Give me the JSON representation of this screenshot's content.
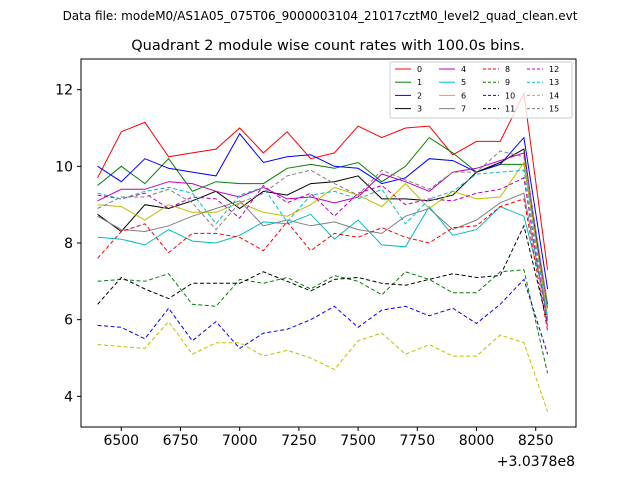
{
  "figure": {
    "suptitle": "Data file: modeM0/AS1A05_075T06_9000003104_21017cztM0_level2_quad_clean.evt"
  },
  "chart_data": {
    "type": "line",
    "title": "Quadrant 2 module wise count rates with 100.0s bins.",
    "xlabel": "",
    "ylabel": "",
    "x_offset_label": "+3.0378e8",
    "xlim": [
      6330,
      8420
    ],
    "ylim": [
      3.2,
      12.8
    ],
    "xticks": [
      6500,
      6750,
      7000,
      7250,
      7500,
      7750,
      8000,
      8250
    ],
    "yticks": [
      4,
      6,
      8,
      10,
      12
    ],
    "grid": false,
    "legend_position": "top-right",
    "x": [
      6400,
      6500,
      6600,
      6700,
      6800,
      6900,
      7000,
      7100,
      7200,
      7300,
      7400,
      7500,
      7600,
      7700,
      7800,
      7900,
      8000,
      8100,
      8200,
      8300
    ],
    "series": [
      {
        "name": "0",
        "color": "#ff0000",
        "dash": "solid",
        "values": [
          9.7,
          10.9,
          11.15,
          10.25,
          10.35,
          10.45,
          11.0,
          10.35,
          10.9,
          10.2,
          10.35,
          11.05,
          10.75,
          11.0,
          11.05,
          10.3,
          10.65,
          10.65,
          11.9,
          7.3
        ]
      },
      {
        "name": "1",
        "color": "#008000",
        "dash": "solid",
        "values": [
          9.5,
          10.0,
          9.55,
          10.2,
          9.35,
          9.6,
          9.55,
          9.55,
          9.95,
          10.05,
          9.95,
          10.1,
          9.6,
          10.0,
          10.75,
          10.35,
          9.85,
          10.05,
          10.05,
          6.4
        ]
      },
      {
        "name": "2",
        "color": "#0000ff",
        "dash": "solid",
        "values": [
          10.0,
          9.6,
          10.2,
          9.95,
          9.85,
          9.75,
          10.85,
          10.1,
          10.25,
          10.3,
          10.0,
          9.95,
          9.55,
          9.7,
          10.2,
          10.15,
          9.85,
          10.05,
          10.75,
          6.8
        ]
      },
      {
        "name": "3",
        "color": "#000000",
        "dash": "solid",
        "values": [
          8.75,
          8.3,
          9.0,
          8.9,
          9.1,
          9.35,
          8.9,
          9.35,
          9.25,
          9.55,
          9.6,
          9.75,
          9.15,
          9.15,
          9.1,
          9.25,
          9.85,
          10.1,
          10.45,
          6.0
        ]
      },
      {
        "name": "4",
        "color": "#bf00bf",
        "dash": "solid",
        "values": [
          9.1,
          9.4,
          9.4,
          9.6,
          9.55,
          9.35,
          9.2,
          9.45,
          9.15,
          9.2,
          9.05,
          9.2,
          9.8,
          9.6,
          9.35,
          9.85,
          9.95,
          10.15,
          10.35,
          6.3
        ]
      },
      {
        "name": "5",
        "color": "#00bfbf",
        "dash": "solid",
        "values": [
          8.15,
          8.1,
          7.95,
          8.35,
          8.05,
          8.0,
          8.2,
          8.55,
          8.5,
          8.75,
          8.1,
          8.6,
          7.95,
          7.9,
          8.95,
          8.2,
          8.35,
          8.95,
          8.7,
          6.3
        ]
      },
      {
        "name": "6",
        "color": "#bfbf00",
        "dash": "solid",
        "values": [
          9.0,
          8.95,
          8.6,
          9.0,
          8.8,
          8.8,
          9.05,
          8.8,
          8.7,
          9.0,
          9.45,
          9.25,
          8.95,
          9.55,
          8.9,
          9.35,
          9.15,
          9.2,
          10.1,
          6.1
        ]
      },
      {
        "name": "7",
        "color": "#808080",
        "dash": "solid",
        "values": [
          8.7,
          8.35,
          8.3,
          8.45,
          8.7,
          8.9,
          9.1,
          8.45,
          8.6,
          8.45,
          8.55,
          8.35,
          8.25,
          8.7,
          8.9,
          8.35,
          8.6,
          9.05,
          9.3,
          6.0
        ]
      },
      {
        "name": "8",
        "color": "#ff0000",
        "dash": "dashed",
        "values": [
          7.6,
          8.3,
          8.5,
          7.75,
          8.25,
          8.25,
          8.15,
          7.8,
          8.55,
          7.8,
          8.25,
          8.15,
          8.4,
          8.15,
          8.0,
          8.4,
          8.45,
          8.95,
          9.15,
          5.7
        ]
      },
      {
        "name": "9",
        "color": "#008000",
        "dash": "dashed",
        "values": [
          7.0,
          7.05,
          7.0,
          7.2,
          6.4,
          6.35,
          7.05,
          6.95,
          7.1,
          6.8,
          7.15,
          7.0,
          6.65,
          7.25,
          7.05,
          6.7,
          6.7,
          7.25,
          7.3,
          4.6
        ]
      },
      {
        "name": "10",
        "color": "#0000ff",
        "dash": "dashed",
        "values": [
          5.85,
          5.8,
          5.5,
          6.3,
          5.45,
          5.95,
          5.25,
          5.65,
          5.75,
          6.0,
          6.35,
          5.8,
          6.25,
          6.35,
          6.1,
          6.3,
          5.9,
          6.4,
          7.05,
          5.1
        ]
      },
      {
        "name": "11",
        "color": "#000000",
        "dash": "dashed",
        "values": [
          6.4,
          7.1,
          6.8,
          6.55,
          6.95,
          6.95,
          6.95,
          7.25,
          7.0,
          6.75,
          7.05,
          7.1,
          6.95,
          6.9,
          7.05,
          7.2,
          7.1,
          7.15,
          8.45,
          5.9
        ]
      },
      {
        "name": "12",
        "color": "#bf00bf",
        "dash": "dashed",
        "values": [
          9.25,
          9.15,
          9.3,
          8.9,
          9.2,
          9.15,
          8.65,
          9.5,
          9.05,
          9.3,
          8.7,
          9.3,
          9.5,
          9.0,
          9.15,
          9.1,
          9.3,
          9.4,
          9.7,
          5.8
        ]
      },
      {
        "name": "13",
        "color": "#00bfbf",
        "dash": "dashed",
        "values": [
          9.3,
          9.15,
          9.35,
          9.45,
          9.3,
          8.5,
          9.25,
          9.45,
          8.55,
          9.25,
          9.35,
          9.15,
          9.4,
          8.5,
          9.15,
          9.35,
          9.8,
          9.85,
          9.9,
          6.0
        ]
      },
      {
        "name": "14",
        "color": "#bfbf00",
        "dash": "dashed",
        "values": [
          5.35,
          5.3,
          5.25,
          5.95,
          5.1,
          5.4,
          5.4,
          5.05,
          5.2,
          5.0,
          4.7,
          5.45,
          5.65,
          5.1,
          5.35,
          5.05,
          5.05,
          5.6,
          5.4,
          3.6
        ]
      },
      {
        "name": "15",
        "color": "#808080",
        "dash": "dashed",
        "values": [
          8.9,
          9.2,
          9.2,
          9.4,
          9.05,
          8.35,
          9.05,
          9.3,
          9.75,
          9.9,
          9.55,
          9.25,
          9.9,
          9.65,
          9.4,
          9.85,
          9.85,
          10.4,
          10.25,
          6.4
        ]
      }
    ]
  }
}
